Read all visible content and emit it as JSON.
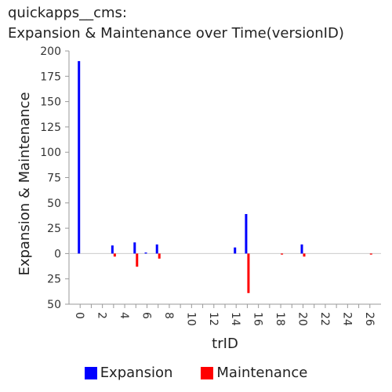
{
  "chart_data": {
    "type": "bar",
    "title": "quickapps__cms:",
    "subtitle": "Expansion & Maintenance over Time(versionID)",
    "xlabel": "trID",
    "ylabel": "Expansion & Maintenance",
    "xlim": [
      -1,
      27
    ],
    "xticks": [
      "0",
      "2",
      "4",
      "6",
      "8",
      "10",
      "12",
      "14",
      "16",
      "18",
      "20",
      "22",
      "24",
      "26"
    ],
    "ylim": [
      -50,
      200
    ],
    "yticks": [
      {
        "value": 200,
        "label": "200"
      },
      {
        "value": 175,
        "label": "175"
      },
      {
        "value": 150,
        "label": "150"
      },
      {
        "value": 125,
        "label": "125"
      },
      {
        "value": 100,
        "label": "100"
      },
      {
        "value": 75,
        "label": "75"
      },
      {
        "value": 50,
        "label": "50"
      },
      {
        "value": 25,
        "label": "25"
      },
      {
        "value": 0,
        "label": "0"
      },
      {
        "value": -25,
        "label": "25"
      },
      {
        "value": -50,
        "label": "50"
      }
    ],
    "legend_position": "bottom",
    "series": [
      {
        "name": "Expansion",
        "color": "#0000ff",
        "points": [
          {
            "x": 0,
            "y": 190
          },
          {
            "x": 3,
            "y": 8
          },
          {
            "x": 5,
            "y": 11
          },
          {
            "x": 6,
            "y": 1
          },
          {
            "x": 7,
            "y": 9
          },
          {
            "x": 14,
            "y": 6
          },
          {
            "x": 15,
            "y": 39
          },
          {
            "x": 20,
            "y": 9
          }
        ]
      },
      {
        "name": "Maintenance",
        "color": "#ff0000",
        "points": [
          {
            "x": 3,
            "y": -3
          },
          {
            "x": 5,
            "y": -13
          },
          {
            "x": 7,
            "y": -5
          },
          {
            "x": 15,
            "y": -39
          },
          {
            "x": 18,
            "y": -1
          },
          {
            "x": 20,
            "y": -3
          },
          {
            "x": 26,
            "y": -1
          }
        ]
      }
    ]
  }
}
